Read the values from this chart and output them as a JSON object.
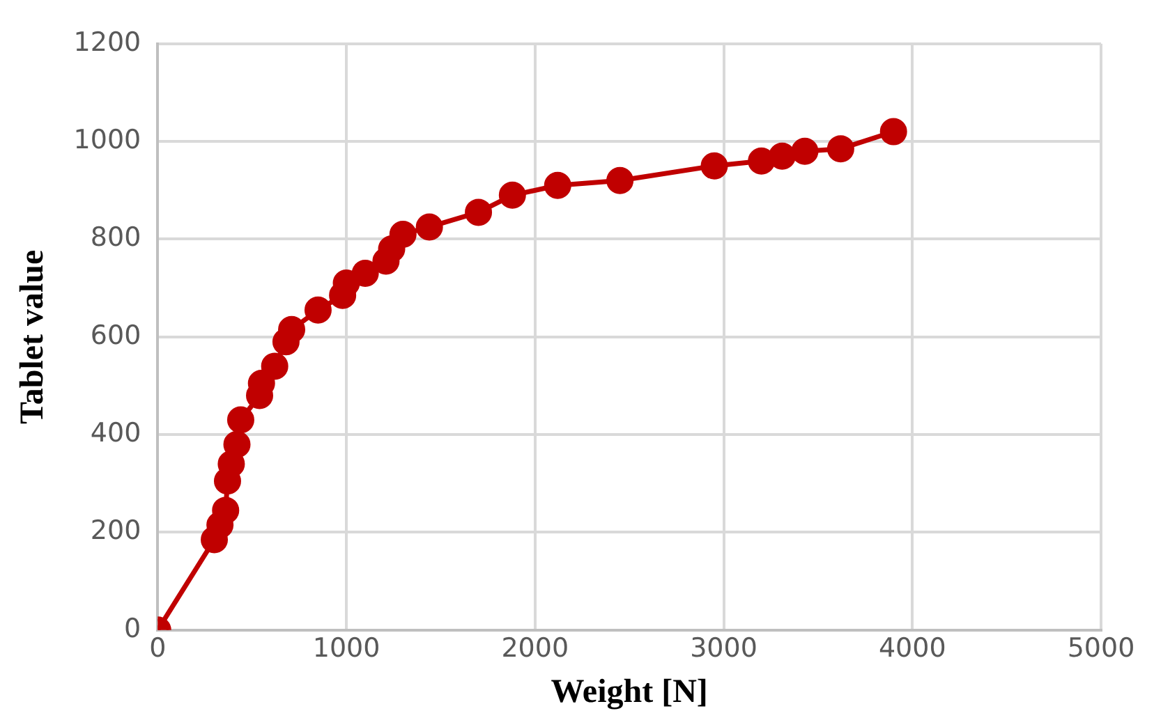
{
  "chart_data": {
    "type": "line",
    "xlabel": "Weight [N]",
    "ylabel": "Tablet value",
    "x": [
      0,
      300,
      330,
      360,
      370,
      390,
      420,
      440,
      540,
      550,
      620,
      680,
      710,
      850,
      980,
      1000,
      1100,
      1210,
      1240,
      1300,
      1440,
      1700,
      1880,
      2120,
      2450,
      2950,
      3200,
      3310,
      3430,
      3620,
      3900
    ],
    "series": [
      {
        "color": "#c00000",
        "values": [
          0,
          185,
          215,
          245,
          305,
          340,
          380,
          430,
          480,
          505,
          540,
          590,
          615,
          655,
          685,
          710,
          730,
          755,
          780,
          810,
          825,
          855,
          890,
          910,
          920,
          950,
          960,
          970,
          980,
          985,
          1020
        ]
      }
    ],
    "xlim": [
      0,
      5000
    ],
    "xticks": [
      0,
      1000,
      2000,
      3000,
      4000,
      5000
    ],
    "ylim": [
      0,
      1200
    ],
    "yticks": [
      0,
      200,
      400,
      600,
      800,
      1000,
      1200
    ],
    "grid": true,
    "legend": false,
    "marker": "circle",
    "line_style": "solid"
  }
}
